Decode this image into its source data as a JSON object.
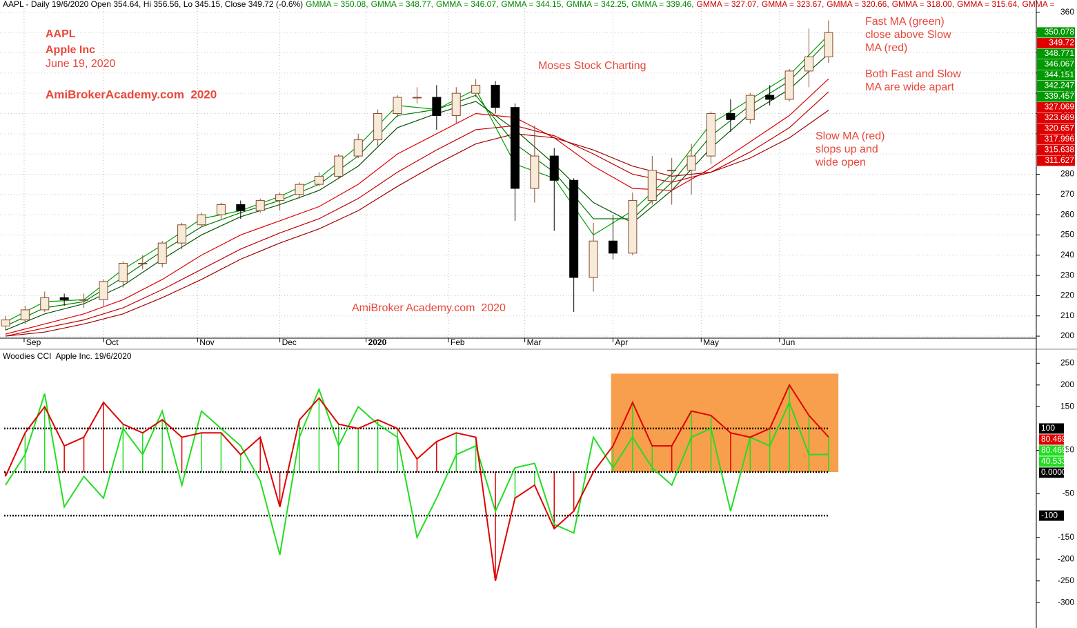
{
  "chart_data": [
    {
      "type": "candlestick",
      "header": [
        {
          "text": "AAPL - Daily 19/6/2020 Open 354.64, Hi 356.56, Lo 345.15, Close 349.72 (-0.6%)",
          "color": "#000000"
        },
        {
          "text": "GMMA = 350.08,",
          "color": "#008800"
        },
        {
          "text": "GMMA = 348.77,",
          "color": "#008800"
        },
        {
          "text": "GMMA = 346.07,",
          "color": "#008800"
        },
        {
          "text": "GMMA = 344.15,",
          "color": "#008800"
        },
        {
          "text": "GMMA = 342.25,",
          "color": "#008800"
        },
        {
          "text": "GMMA = 339.46,",
          "color": "#008800"
        },
        {
          "text": "GMMA = 327.07,",
          "color": "#d00000"
        },
        {
          "text": "GMMA = 323.67,",
          "color": "#d00000"
        },
        {
          "text": "GMMA = 320.66,",
          "color": "#d00000"
        },
        {
          "text": "GMMA = 318.00,",
          "color": "#d00000"
        },
        {
          "text": "GMMA = 315.64,",
          "color": "#d00000"
        },
        {
          "text": "GMMA =",
          "color": "#d00000"
        }
      ],
      "annotations": [
        "AAPL",
        "Apple Inc",
        "June 19, 2020",
        "AmiBrokerAcademy.com  2020",
        "Moses Stock Charting",
        "AmiBroker Academy.com  2020",
        "Fast MA (green)",
        "close above Slow",
        "MA (red)",
        "Both Fast and Slow",
        "MA are wide apart",
        "Slow MA (red)",
        "slops up and",
        "wide open"
      ],
      "x": [
        0,
        1,
        2,
        3,
        4,
        5,
        6,
        7,
        8,
        9,
        10,
        11,
        12,
        13,
        14,
        15,
        16,
        17,
        18,
        19,
        20,
        21,
        22,
        23,
        24,
        25,
        26,
        27,
        28,
        29,
        30,
        31,
        32,
        33,
        34,
        35,
        36,
        37,
        38,
        39,
        40,
        41,
        42
      ],
      "open": [
        205,
        208,
        213,
        219,
        218,
        218,
        227,
        236,
        236,
        246,
        255,
        260,
        265,
        262,
        267,
        270,
        275,
        279,
        289,
        297,
        310,
        318,
        318,
        309,
        320,
        324,
        313,
        273,
        289,
        277,
        229,
        247,
        241,
        267,
        282,
        282,
        289,
        310,
        307,
        319,
        317,
        331,
        338
      ],
      "high": [
        210,
        215,
        222,
        221,
        221,
        228,
        237,
        240,
        247,
        256,
        261,
        266,
        267,
        268,
        271,
        276,
        281,
        290,
        300,
        312,
        319,
        323,
        324,
        323,
        327,
        326,
        315,
        304,
        293,
        278,
        256,
        260,
        271,
        289,
        288,
        295,
        311,
        317,
        320,
        324,
        332,
        352,
        356
      ],
      "low": [
        203,
        206,
        212,
        215,
        214,
        215,
        224,
        233,
        234,
        243,
        254,
        258,
        258,
        261,
        262,
        268,
        274,
        278,
        288,
        294,
        308,
        315,
        302,
        305,
        318,
        310,
        257,
        266,
        252,
        212,
        222,
        238,
        240,
        265,
        265,
        270,
        285,
        301,
        305,
        314,
        316,
        323,
        335
      ],
      "close": [
        208,
        213,
        219,
        218,
        218,
        227,
        236,
        236,
        246,
        255,
        260,
        265,
        262,
        267,
        270,
        275,
        279,
        289,
        297,
        310,
        318,
        318,
        309,
        320,
        324,
        313,
        273,
        289,
        277,
        229,
        247,
        241,
        267,
        282,
        282,
        289,
        310,
        307,
        319,
        317,
        331,
        338,
        350
      ],
      "up_color": "#f6ead8",
      "up_stroke": "#8b4a2b",
      "down_color": "#000000",
      "gmma": {
        "x": [
          0,
          2,
          4,
          6,
          8,
          10,
          12,
          14,
          16,
          18,
          20,
          22,
          24,
          26,
          28,
          30,
          32,
          34,
          36,
          38,
          40,
          42
        ],
        "series": [
          {
            "color": "#00a000",
            "values": [
              207,
              217,
              218,
              233,
              245,
              258,
              262,
              269,
              278,
              294,
              314,
              312,
              322,
              285,
              278,
              250,
              262,
              280,
              305,
              317,
              329,
              348.8
            ]
          },
          {
            "color": "#007a00",
            "values": [
              205,
              214,
              217,
              229,
              242,
              254,
              261,
              267,
              275,
              289,
              309,
              312,
              319,
              295,
              281,
              258,
              258,
              276,
              299,
              314,
              326,
              346.1
            ]
          },
          {
            "color": "#005500",
            "values": [
              203,
              211,
              216,
              225,
              238,
              250,
              259,
              265,
              272,
              284,
              303,
              310,
              316,
              302,
              285,
              266,
              256,
              272,
              293,
              310,
              322,
              339.5
            ]
          },
          {
            "color": "#e00000",
            "values": [
              201,
              206,
              211,
              218,
              228,
              240,
              250,
              257,
              264,
              275,
              290,
              300,
              310,
              308,
              298,
              284,
              273,
              272,
              283,
              296,
              309,
              327.1
            ]
          },
          {
            "color": "#c00000",
            "values": [
              200,
              204,
              208,
              214,
              223,
              233,
              243,
              251,
              258,
              268,
              281,
              292,
              302,
              304,
              299,
              290,
              280,
              276,
              281,
              291,
              303,
              320.7
            ]
          },
          {
            "color": "#a00000",
            "values": [
              200,
              202,
              206,
              211,
              219,
              228,
              238,
              246,
              253,
              262,
              274,
              285,
              295,
              300,
              298,
              292,
              284,
              279,
              281,
              288,
              298,
              311.6
            ]
          }
        ]
      },
      "xlim": [
        -0.28,
        52.6
      ],
      "xticks": [
        {
          "value": 0.95,
          "label": "Sep"
        },
        {
          "value": 5.0,
          "label": "Oct"
        },
        {
          "value": 9.8,
          "label": "Nov"
        },
        {
          "value": 14.0,
          "label": "Dec"
        },
        {
          "value": 18.4,
          "label": "2020"
        },
        {
          "value": 22.6,
          "label": "Feb"
        },
        {
          "value": 26.5,
          "label": "Mar"
        },
        {
          "value": 31.0,
          "label": "Apr"
        },
        {
          "value": 35.5,
          "label": "May"
        },
        {
          "value": 39.5,
          "label": "Jun"
        }
      ],
      "ylim": [
        199,
        362
      ],
      "yticks": [
        200,
        210,
        220,
        230,
        240,
        250,
        260,
        270,
        280,
        290,
        300,
        310,
        320,
        330,
        340,
        350,
        360
      ],
      "grid": true,
      "price_markers": [
        {
          "value": 350.078,
          "color": "#009900"
        },
        {
          "value": 349.72,
          "color": "#e00000"
        },
        {
          "value": 348.771,
          "color": "#009900"
        },
        {
          "value": 346.067,
          "color": "#009900"
        },
        {
          "value": 344.151,
          "color": "#009900"
        },
        {
          "value": 342.247,
          "color": "#009900"
        },
        {
          "value": 339.457,
          "color": "#009900"
        },
        {
          "value": 327.069,
          "color": "#e00000"
        },
        {
          "value": 323.669,
          "color": "#e00000"
        },
        {
          "value": 320.657,
          "color": "#e00000"
        },
        {
          "value": 317.996,
          "color": "#e00000"
        },
        {
          "value": 315.638,
          "color": "#e00000"
        },
        {
          "value": 311.627,
          "color": "#e00000"
        }
      ]
    },
    {
      "type": "cci",
      "title": "Woodies CCI  Apple Inc. 19/6/2020",
      "x": [
        0,
        1,
        2,
        3,
        4,
        5,
        6,
        7,
        8,
        9,
        10,
        11,
        12,
        13,
        14,
        15,
        16,
        17,
        18,
        19,
        20,
        21,
        22,
        23,
        24,
        25,
        26,
        27,
        28,
        29,
        30,
        31,
        32,
        33,
        34,
        35,
        36,
        37,
        38,
        39,
        40,
        41,
        42
      ],
      "series": [
        {
          "color": "#e00000",
          "values": [
            -10,
            90,
            150,
            60,
            80,
            160,
            110,
            90,
            120,
            80,
            90,
            90,
            40,
            80,
            -80,
            120,
            170,
            110,
            100,
            120,
            100,
            30,
            70,
            90,
            80,
            -250,
            -60,
            -30,
            -130,
            -90,
            0,
            60,
            160,
            60,
            60,
            140,
            130,
            90,
            80,
            100,
            200,
            130,
            80.4691
          ]
        },
        {
          "color": "#22dd22",
          "values": [
            -30,
            40,
            180,
            -80,
            -10,
            -60,
            100,
            40,
            140,
            -30,
            140,
            100,
            60,
            -20,
            -190,
            80,
            190,
            60,
            150,
            110,
            80,
            -150,
            -60,
            40,
            60,
            -90,
            10,
            20,
            -120,
            -140,
            80,
            10,
            80,
            10,
            -30,
            80,
            100,
            -90,
            80,
            60,
            160,
            40,
            40.533
          ]
        }
      ],
      "levels": [
        100,
        0,
        -100
      ],
      "highlight": {
        "x": [
          30.9,
          42.5
        ],
        "y": [
          0,
          226
        ],
        "color": "#f7953a"
      },
      "xlim": [
        -0.28,
        52.6
      ],
      "ylim": [
        -355,
        279
      ],
      "yticks": [
        250,
        200,
        150,
        50,
        -50,
        -150,
        -200,
        -250,
        -300
      ],
      "markers": [
        {
          "value": 100,
          "color": "#000000"
        },
        {
          "value": 80.4691,
          "color": "#e00000"
        },
        {
          "value": 80.4691,
          "color": "#22dd22"
        },
        {
          "value": 40.533,
          "color": "#22dd22"
        },
        {
          "value": 0,
          "label": "0.00000",
          "color": "#000000"
        },
        {
          "value": -100,
          "color": "#000000"
        }
      ]
    }
  ]
}
